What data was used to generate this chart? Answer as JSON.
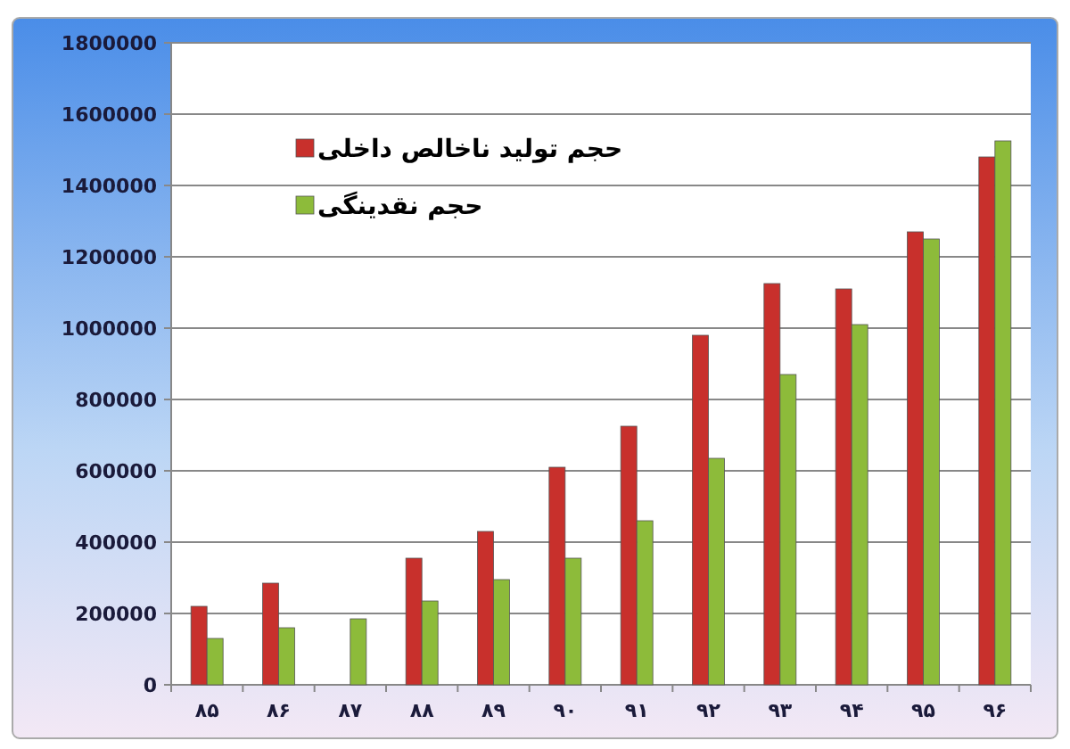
{
  "chart_data": {
    "type": "bar",
    "categories": [
      "۸۵",
      "۸۶",
      "۸۷",
      "۸۸",
      "۸۹",
      "۹۰",
      "۹۱",
      "۹۲",
      "۹۳",
      "۹۴",
      "۹۵",
      "۹۶"
    ],
    "series": [
      {
        "name": "حجم تولید ناخالص داخلی",
        "color": "#c8302c",
        "values": [
          220000,
          285000,
          null,
          355000,
          430000,
          610000,
          725000,
          980000,
          1125000,
          1110000,
          1270000,
          1480000
        ]
      },
      {
        "name": "حجم نقدینگی",
        "color": "#8dbb3a",
        "values": [
          130000,
          160000,
          185000,
          235000,
          295000,
          355000,
          460000,
          635000,
          870000,
          1010000,
          1250000,
          1525000
        ]
      }
    ],
    "ylim": [
      0,
      1800000
    ],
    "yticks": [
      0,
      200000,
      400000,
      600000,
      800000,
      1000000,
      1200000,
      1400000,
      1600000,
      1800000
    ],
    "grid": "y",
    "legend": "top left"
  }
}
